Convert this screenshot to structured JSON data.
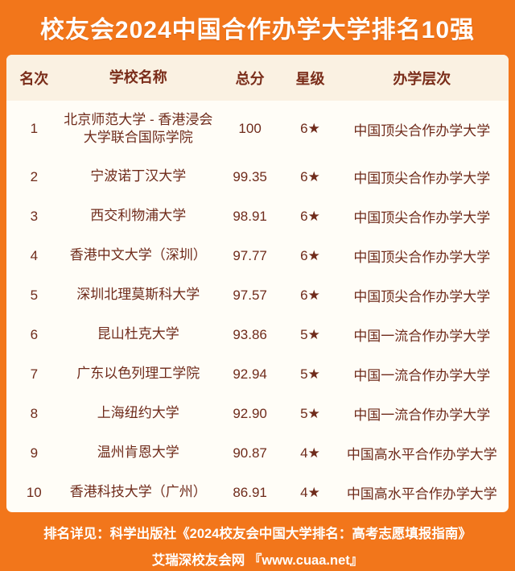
{
  "title": "校友会2024中国合作办学大学排名10强",
  "colors": {
    "background_orange": "#F2761B",
    "card_background": "#FFFDF7",
    "header_row_background": "#FAF1E2",
    "text_maroon": "#6F2B1B",
    "title_white": "#FFFFFF"
  },
  "table": {
    "columns": [
      "名次",
      "学校名称",
      "总分",
      "星级",
      "办学层次"
    ],
    "rows": [
      {
        "rank": "1",
        "name": "北京师范大学 - 香港浸会大学联合国际学院",
        "score": "100",
        "star": "6★",
        "level": "中国顶尖合作办学大学"
      },
      {
        "rank": "2",
        "name": "宁波诺丁汉大学",
        "score": "99.35",
        "star": "6★",
        "level": "中国顶尖合作办学大学"
      },
      {
        "rank": "3",
        "name": "西交利物浦大学",
        "score": "98.91",
        "star": "6★",
        "level": "中国顶尖合作办学大学"
      },
      {
        "rank": "4",
        "name": "香港中文大学（深圳）",
        "score": "97.77",
        "star": "6★",
        "level": "中国顶尖合作办学大学"
      },
      {
        "rank": "5",
        "name": "深圳北理莫斯科大学",
        "score": "97.57",
        "star": "6★",
        "level": "中国顶尖合作办学大学"
      },
      {
        "rank": "6",
        "name": "昆山杜克大学",
        "score": "93.86",
        "star": "5★",
        "level": "中国一流合作办学大学"
      },
      {
        "rank": "7",
        "name": "广东以色列理工学院",
        "score": "92.94",
        "star": "5★",
        "level": "中国一流合作办学大学"
      },
      {
        "rank": "8",
        "name": "上海纽约大学",
        "score": "92.90",
        "star": "5★",
        "level": "中国一流合作办学大学"
      },
      {
        "rank": "9",
        "name": "温州肯恩大学",
        "score": "90.87",
        "star": "4★",
        "level": "中国高水平合作办学大学"
      },
      {
        "rank": "10",
        "name": "香港科技大学（广州）",
        "score": "86.91",
        "star": "4★",
        "level": "中国高水平合作办学大学"
      }
    ]
  },
  "footer": {
    "line1": "排名详见：科学出版社《2024校友会中国大学排名：高考志愿填报指南》",
    "line2": "艾瑞深校友会网 『www.cuaa.net』"
  },
  "chart_data": {
    "type": "table",
    "title": "校友会2024中国合作办学大学排名10强",
    "columns": [
      "名次",
      "学校名称",
      "总分",
      "星级",
      "办学层次"
    ],
    "rows": [
      [
        "1",
        "北京师范大学 - 香港浸会大学联合国际学院",
        "100",
        "6★",
        "中国顶尖合作办学大学"
      ],
      [
        "2",
        "宁波诺丁汉大学",
        "99.35",
        "6★",
        "中国顶尖合作办学大学"
      ],
      [
        "3",
        "西交利物浦大学",
        "98.91",
        "6★",
        "中国顶尖合作办学大学"
      ],
      [
        "4",
        "香港中文大学（深圳）",
        "97.77",
        "6★",
        "中国顶尖合作办学大学"
      ],
      [
        "5",
        "深圳北理莫斯科大学",
        "97.57",
        "6★",
        "中国顶尖合作办学大学"
      ],
      [
        "6",
        "昆山杜克大学",
        "93.86",
        "5★",
        "中国一流合作办学大学"
      ],
      [
        "7",
        "广东以色列理工学院",
        "92.94",
        "5★",
        "中国一流合作办学大学"
      ],
      [
        "8",
        "上海纽约大学",
        "92.90",
        "5★",
        "中国一流合作办学大学"
      ],
      [
        "9",
        "温州肯恩大学",
        "90.87",
        "4★",
        "中国高水平合作办学大学"
      ],
      [
        "10",
        "香港科技大学（广州）",
        "86.91",
        "4★",
        "中国高水平合作办学大学"
      ]
    ],
    "notes": [
      "排名详见：科学出版社《2024校友会中国大学排名：高考志愿填报指南》",
      "艾瑞深校友会网 『www.cuaa.net』"
    ]
  }
}
